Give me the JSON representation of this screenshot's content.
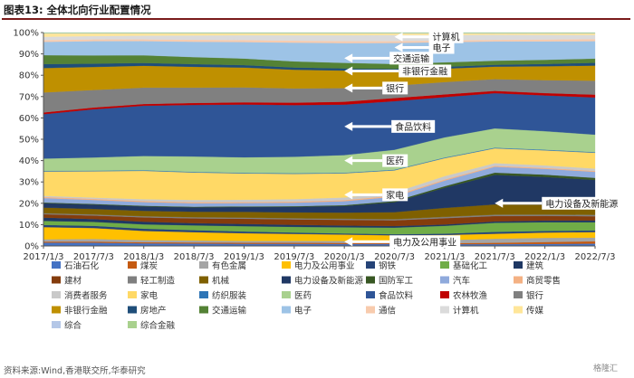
{
  "header": {
    "title": "图表13:  全体北向行业配置情况",
    "rule_color": "#7a1b1b"
  },
  "footer": {
    "source": "资料来源:Wind,香港联交所,华泰研究",
    "watermark": "格隆汇"
  },
  "chart_data": {
    "type": "area",
    "stacked": true,
    "x": [
      "2017/1/3",
      "2017/7/3",
      "2018/1/3",
      "2018/7/3",
      "2019/1/3",
      "2019/7/3",
      "2020/1/3",
      "2020/7/3",
      "2021/1/3",
      "2021/7/3",
      "2022/1/3",
      "2022/7/3"
    ],
    "x_tick_labels": [
      "2017/1/3",
      "2017/7/3",
      "2018/1/3",
      "2018/7/3",
      "2019/1/3",
      "2019/7/3",
      "2020/1/3",
      "2020/7/3",
      "2021/1/3",
      "2021/7/3",
      "2022/1/3",
      "2022/7/3"
    ],
    "y_tick_labels": [
      "0%",
      "10%",
      "20%",
      "30%",
      "40%",
      "50%",
      "60%",
      "70%",
      "80%",
      "90%",
      "100%"
    ],
    "ylim": [
      0,
      100
    ],
    "grid": false,
    "legend_position": "bottom",
    "series": [
      {
        "name": "石油石化",
        "color": "#4472c4",
        "values": [
          1.5,
          1.5,
          1.2,
          1.1,
          1.0,
          1.0,
          0.9,
          0.9,
          0.8,
          0.8,
          0.9,
          1.0
        ]
      },
      {
        "name": "煤炭",
        "color": "#c55a11",
        "values": [
          0.5,
          0.5,
          0.5,
          0.5,
          0.5,
          0.5,
          0.5,
          0.4,
          0.5,
          0.6,
          0.8,
          1.0
        ]
      },
      {
        "name": "有色金属",
        "color": "#a5a5a5",
        "values": [
          1.0,
          1.2,
          1.0,
          0.9,
          0.8,
          0.8,
          0.9,
          0.9,
          1.3,
          1.8,
          1.8,
          1.6
        ]
      },
      {
        "name": "电力及公用事业",
        "color": "#ffc000",
        "values": [
          5.5,
          5.0,
          4.2,
          3.8,
          3.5,
          3.2,
          2.9,
          2.6,
          2.3,
          2.2,
          2.3,
          2.4
        ]
      },
      {
        "name": "钢铁",
        "color": "#264478",
        "values": [
          1.0,
          1.0,
          1.0,
          0.9,
          0.8,
          0.6,
          0.5,
          0.5,
          0.6,
          0.8,
          0.7,
          0.7
        ]
      },
      {
        "name": "基础化工",
        "color": "#70ad47",
        "values": [
          1.8,
          1.8,
          2.0,
          2.2,
          2.4,
          2.6,
          2.8,
          3.0,
          3.5,
          4.0,
          3.8,
          3.5
        ]
      },
      {
        "name": "建筑",
        "color": "#1f3864",
        "values": [
          1.5,
          1.3,
          1.2,
          1.0,
          1.0,
          0.9,
          0.8,
          0.7,
          0.6,
          0.6,
          0.7,
          0.8
        ]
      },
      {
        "name": "建材",
        "color": "#843c0c",
        "values": [
          1.5,
          1.6,
          2.0,
          2.2,
          2.4,
          2.5,
          2.6,
          2.6,
          2.8,
          2.4,
          2.0,
          1.8
        ]
      },
      {
        "name": "轻工制造",
        "color": "#7f7f7f",
        "values": [
          0.5,
          0.5,
          0.5,
          0.5,
          0.5,
          0.5,
          0.5,
          0.5,
          0.6,
          0.6,
          0.6,
          0.6
        ]
      },
      {
        "name": "机械",
        "color": "#7f6000",
        "values": [
          2.5,
          2.5,
          2.5,
          2.5,
          2.6,
          2.7,
          2.8,
          3.2,
          4.0,
          4.5,
          4.3,
          4.0
        ]
      },
      {
        "name": "电力设备及新能源",
        "color": "#203864",
        "values": [
          2.0,
          2.0,
          2.0,
          2.0,
          2.2,
          2.5,
          3.0,
          4.5,
          9.0,
          13.0,
          12.0,
          11.0
        ]
      },
      {
        "name": "国防军工",
        "color": "#385723",
        "values": [
          0.3,
          0.3,
          0.3,
          0.3,
          0.3,
          0.3,
          0.4,
          0.5,
          0.7,
          1.0,
          1.0,
          0.9
        ]
      },
      {
        "name": "汽车",
        "color": "#8faadc",
        "values": [
          2.0,
          1.8,
          1.7,
          1.6,
          1.5,
          1.6,
          1.8,
          2.0,
          2.5,
          2.6,
          2.5,
          2.6
        ]
      },
      {
        "name": "商贸零售",
        "color": "#f4b183",
        "values": [
          0.5,
          0.5,
          0.5,
          0.5,
          0.5,
          0.5,
          0.5,
          0.5,
          0.5,
          0.4,
          0.4,
          0.4
        ]
      },
      {
        "name": "消费者服务",
        "color": "#c9c9c9",
        "values": [
          0.5,
          0.6,
          0.8,
          1.0,
          1.0,
          1.1,
          1.2,
          1.4,
          1.5,
          1.2,
          1.1,
          1.0
        ]
      },
      {
        "name": "家电",
        "color": "#ffd966",
        "values": [
          11.0,
          12.0,
          13.0,
          12.5,
          12.0,
          11.5,
          11.0,
          10.0,
          8.0,
          6.5,
          6.5,
          6.8
        ]
      },
      {
        "name": "纺织服装",
        "color": "#2e75b6",
        "values": [
          0.3,
          0.3,
          0.3,
          0.3,
          0.3,
          0.3,
          0.3,
          0.3,
          0.3,
          0.3,
          0.3,
          0.3
        ]
      },
      {
        "name": "医药",
        "color": "#a9d18e",
        "values": [
          5.5,
          6.0,
          6.5,
          7.0,
          7.0,
          7.5,
          8.0,
          9.0,
          9.0,
          8.5,
          8.0,
          7.5
        ]
      },
      {
        "name": "食品饮料",
        "color": "#2f5597",
        "values": [
          20.0,
          22.0,
          23.0,
          23.5,
          24.0,
          23.5,
          23.0,
          22.0,
          18.0,
          15.5,
          15.5,
          16.0
        ]
      },
      {
        "name": "农林牧渔",
        "color": "#c00000",
        "values": [
          0.8,
          0.8,
          0.8,
          0.9,
          1.0,
          1.1,
          1.3,
          1.4,
          1.2,
          1.0,
          1.0,
          1.2
        ]
      },
      {
        "name": "银行",
        "color": "#808080",
        "values": [
          9.0,
          8.0,
          7.5,
          7.0,
          6.8,
          6.5,
          6.2,
          5.6,
          5.5,
          5.2,
          5.6,
          6.0
        ]
      },
      {
        "name": "非银行金融",
        "color": "#bf9000",
        "values": [
          11.0,
          10.5,
          10.0,
          9.5,
          9.0,
          8.5,
          8.0,
          6.8,
          6.0,
          5.5,
          6.0,
          6.5
        ]
      },
      {
        "name": "房地产",
        "color": "#1f4e79",
        "values": [
          1.8,
          1.5,
          1.3,
          1.2,
          1.1,
          1.0,
          1.0,
          0.8,
          0.8,
          0.8,
          1.0,
          1.2
        ]
      },
      {
        "name": "交通运输",
        "color": "#548235",
        "values": [
          4.0,
          3.8,
          3.5,
          3.2,
          3.0,
          2.8,
          2.5,
          2.2,
          2.0,
          1.8,
          1.8,
          1.8
        ]
      },
      {
        "name": "电子",
        "color": "#9dc3e6",
        "values": [
          6.0,
          6.5,
          6.5,
          7.0,
          7.5,
          8.5,
          9.0,
          9.5,
          9.0,
          8.5,
          8.0,
          7.5
        ]
      },
      {
        "name": "通信",
        "color": "#f8cbad",
        "values": [
          0.8,
          0.8,
          0.8,
          0.9,
          0.9,
          0.9,
          0.9,
          0.8,
          0.7,
          0.7,
          0.8,
          0.9
        ]
      },
      {
        "name": "计算机",
        "color": "#dbdbdb",
        "values": [
          1.5,
          1.5,
          1.7,
          2.0,
          2.2,
          2.5,
          2.7,
          2.8,
          2.5,
          2.2,
          2.0,
          1.8
        ]
      },
      {
        "name": "传媒",
        "color": "#ffe699",
        "values": [
          1.5,
          1.2,
          1.0,
          0.9,
          0.8,
          0.8,
          0.8,
          0.7,
          0.7,
          0.6,
          0.6,
          0.6
        ]
      },
      {
        "name": "综合",
        "color": "#b4c7e7",
        "values": [
          0.2,
          0.2,
          0.2,
          0.2,
          0.2,
          0.2,
          0.2,
          0.2,
          0.2,
          0.2,
          0.2,
          0.2
        ]
      },
      {
        "name": "综合金融",
        "color": "#a9d18e",
        "values": [
          0.2,
          0.2,
          0.2,
          0.2,
          0.2,
          0.2,
          0.2,
          0.2,
          0.2,
          0.2,
          0.2,
          0.2
        ]
      }
    ],
    "annotations": [
      {
        "label": "计算机",
        "x": "2020/7/3",
        "y": 98.0,
        "lx": "2020/7/3",
        "ly": 98.0,
        "side": "right"
      },
      {
        "label": "电子",
        "x": "2020/7/3",
        "y": 93.0,
        "lx": "2020/7/3",
        "ly": 93.0,
        "side": "right"
      },
      {
        "label": "交通运输",
        "x": "2020/1/3",
        "y": 88.0,
        "lx": "2020/1/3",
        "ly": 88.0,
        "side": "right"
      },
      {
        "label": "非银行金融",
        "x": "2020/1/3",
        "y": 82.0,
        "lx": "2020/1/3",
        "ly": 82.0,
        "side": "right"
      },
      {
        "label": "银行",
        "x": "2020/1/3",
        "y": 74.0,
        "lx": "2020/1/3",
        "ly": 74.0,
        "side": "right"
      },
      {
        "label": "食品饮料",
        "x": "2020/1/3",
        "y": 56.0,
        "lx": "2020/1/3",
        "ly": 56.0,
        "side": "right"
      },
      {
        "label": "医药",
        "x": "2020/1/3",
        "y": 40.0,
        "lx": "2020/1/3",
        "ly": 40.0,
        "side": "right"
      },
      {
        "label": "家电",
        "x": "2020/1/3",
        "y": 24.0,
        "lx": "2020/1/3",
        "ly": 24.0,
        "side": "right"
      },
      {
        "label": "电力设备及新能源",
        "x": "2021/7/3",
        "y": 20.0,
        "lx": "2021/7/3",
        "ly": 20.0,
        "side": "right"
      },
      {
        "label": "电力及公用事业",
        "x": "2020/1/3",
        "y": 2.0,
        "lx": "2020/1/3",
        "ly": 2.0,
        "side": "right"
      }
    ]
  }
}
